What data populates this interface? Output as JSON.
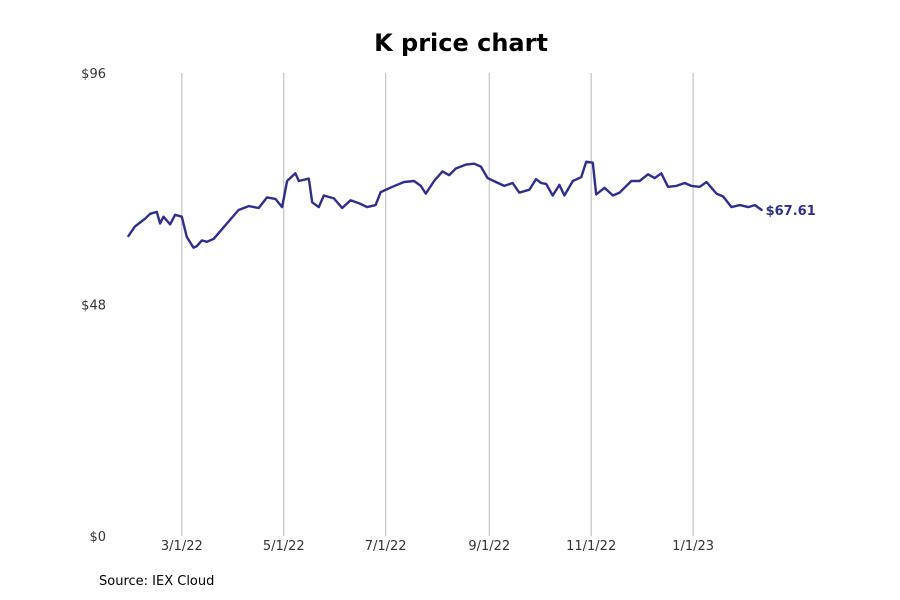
{
  "chart_data": {
    "type": "line",
    "title": "K price chart",
    "xlabel": "",
    "ylabel": "",
    "ylim": [
      0,
      96
    ],
    "y_ticks": [
      {
        "value": 0,
        "label": "$0"
      },
      {
        "value": 48,
        "label": "$48"
      },
      {
        "value": 96,
        "label": "$96"
      }
    ],
    "xlim": [
      "2022-01-20",
      "2023-02-28"
    ],
    "x_ticks": [
      {
        "date": "2022-03-01",
        "label": "3/1/22"
      },
      {
        "date": "2022-05-01",
        "label": "5/1/22"
      },
      {
        "date": "2022-07-01",
        "label": "7/1/22"
      },
      {
        "date": "2022-09-01",
        "label": "9/1/22"
      },
      {
        "date": "2022-11-01",
        "label": "11/1/22"
      },
      {
        "date": "2023-01-01",
        "label": "1/1/23"
      }
    ],
    "grid": "vertical",
    "series": [
      {
        "color": "#2e2e8f",
        "last_value_label": "$67.61",
        "points": [
          [
            "2022-01-28",
            62.2
          ],
          [
            "2022-02-01",
            64.2
          ],
          [
            "2022-02-04",
            65.0
          ],
          [
            "2022-02-07",
            65.8
          ],
          [
            "2022-02-10",
            66.8
          ],
          [
            "2022-02-14",
            67.2
          ],
          [
            "2022-02-16",
            64.8
          ],
          [
            "2022-02-18",
            66.2
          ],
          [
            "2022-02-22",
            64.6
          ],
          [
            "2022-02-25",
            66.6
          ],
          [
            "2022-03-01",
            66.2
          ],
          [
            "2022-03-04",
            62.0
          ],
          [
            "2022-03-08",
            59.8
          ],
          [
            "2022-03-10",
            60.1
          ],
          [
            "2022-03-13",
            61.3
          ],
          [
            "2022-03-16",
            61.0
          ],
          [
            "2022-03-20",
            61.6
          ],
          [
            "2022-03-24",
            63.2
          ],
          [
            "2022-03-29",
            65.2
          ],
          [
            "2022-04-04",
            67.6
          ],
          [
            "2022-04-10",
            68.4
          ],
          [
            "2022-04-16",
            68.0
          ],
          [
            "2022-04-21",
            70.2
          ],
          [
            "2022-04-26",
            69.9
          ],
          [
            "2022-04-30",
            68.2
          ],
          [
            "2022-05-03",
            73.6
          ],
          [
            "2022-05-08",
            75.2
          ],
          [
            "2022-05-10",
            73.6
          ],
          [
            "2022-05-16",
            74.1
          ],
          [
            "2022-05-18",
            69.2
          ],
          [
            "2022-05-22",
            68.2
          ],
          [
            "2022-05-25",
            70.6
          ],
          [
            "2022-05-31",
            70.0
          ],
          [
            "2022-06-05",
            68.0
          ],
          [
            "2022-06-10",
            69.6
          ],
          [
            "2022-06-15",
            69.0
          ],
          [
            "2022-06-20",
            68.2
          ],
          [
            "2022-06-25",
            68.6
          ],
          [
            "2022-06-28",
            71.3
          ],
          [
            "2022-07-05",
            72.4
          ],
          [
            "2022-07-12",
            73.4
          ],
          [
            "2022-07-18",
            73.6
          ],
          [
            "2022-07-22",
            72.6
          ],
          [
            "2022-07-25",
            71.0
          ],
          [
            "2022-07-30",
            73.6
          ],
          [
            "2022-08-04",
            75.6
          ],
          [
            "2022-08-08",
            74.8
          ],
          [
            "2022-08-12",
            76.2
          ],
          [
            "2022-08-18",
            77.0
          ],
          [
            "2022-08-23",
            77.2
          ],
          [
            "2022-08-27",
            76.6
          ],
          [
            "2022-08-31",
            74.2
          ],
          [
            "2022-09-05",
            73.4
          ],
          [
            "2022-09-10",
            72.6
          ],
          [
            "2022-09-15",
            73.2
          ],
          [
            "2022-09-19",
            71.2
          ],
          [
            "2022-09-25",
            71.8
          ],
          [
            "2022-09-29",
            74.0
          ],
          [
            "2022-10-02",
            73.2
          ],
          [
            "2022-10-05",
            73.0
          ],
          [
            "2022-10-09",
            70.6
          ],
          [
            "2022-10-13",
            72.8
          ],
          [
            "2022-10-16",
            70.6
          ],
          [
            "2022-10-21",
            73.6
          ],
          [
            "2022-10-26",
            74.4
          ],
          [
            "2022-10-29",
            77.6
          ],
          [
            "2022-11-02",
            77.4
          ],
          [
            "2022-11-04",
            70.8
          ],
          [
            "2022-11-09",
            72.2
          ],
          [
            "2022-11-14",
            70.6
          ],
          [
            "2022-11-18",
            71.2
          ],
          [
            "2022-11-25",
            73.6
          ],
          [
            "2022-11-30",
            73.6
          ],
          [
            "2022-12-05",
            75.0
          ],
          [
            "2022-12-09",
            74.2
          ],
          [
            "2022-12-13",
            75.2
          ],
          [
            "2022-12-17",
            72.4
          ],
          [
            "2022-12-22",
            72.6
          ],
          [
            "2022-12-27",
            73.2
          ],
          [
            "2022-12-31",
            72.6
          ],
          [
            "2023-01-05",
            72.4
          ],
          [
            "2023-01-09",
            73.4
          ],
          [
            "2023-01-15",
            71.0
          ],
          [
            "2023-01-19",
            70.4
          ],
          [
            "2023-01-24",
            68.2
          ],
          [
            "2023-01-29",
            68.6
          ],
          [
            "2023-02-03",
            68.2
          ],
          [
            "2023-02-07",
            68.6
          ],
          [
            "2023-02-11",
            67.61
          ]
        ]
      }
    ]
  },
  "source_text": "Source: IEX Cloud"
}
